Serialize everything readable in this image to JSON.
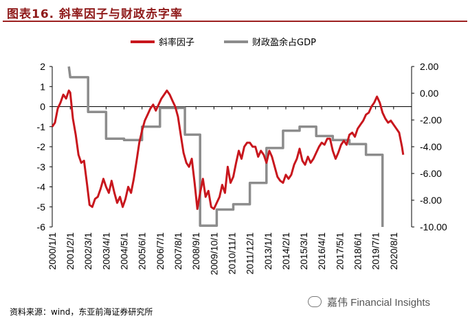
{
  "header": {
    "title": "图表16.  斜率因子与财政赤字率"
  },
  "source": "资料来源：wind，东亚前海证券研究所",
  "watermark": "嘉伟 Financial Insights",
  "watermark_icon": "wechat-icon",
  "colors": {
    "slope": "#c8161d",
    "fiscal": "#8c8c8c",
    "title": "#8f1a1a"
  },
  "chart_data": {
    "type": "line",
    "title": "",
    "legend_position": "top",
    "grid": false,
    "y_left": {
      "lim": [
        -6,
        2
      ],
      "ticks": [
        "2",
        "1",
        "0",
        "-1",
        "-2",
        "-3",
        "-4",
        "-5",
        "-6"
      ]
    },
    "y_right": {
      "lim": [
        -10,
        2
      ],
      "ticks": [
        "2.00",
        "0.00",
        "-2.00",
        "-4.00",
        "-6.00",
        "-8.00",
        "-10.00"
      ]
    },
    "x_ticks": [
      "2000/1/1",
      "2001/2/1",
      "2002/3/1",
      "2003/4/1",
      "2004/5/1",
      "2005/6/1",
      "2006/7/1",
      "2007/8/1",
      "2008/9/1",
      "2009/10/1",
      "2010/11/1",
      "2011/12/1",
      "2013/1/1",
      "2014/2/1",
      "2015/3/1",
      "2016/4/1",
      "2017/5/1",
      "2018/6/1",
      "2019/7/1",
      "2020/8/1"
    ],
    "x_range": [
      "2000/1/1",
      "2021/9/1"
    ],
    "series": [
      {
        "name": "斜率因子",
        "axis": "left",
        "points": [
          [
            "2000/1/1",
            -1.0
          ],
          [
            "2000/3/1",
            -0.8
          ],
          [
            "2000/5/1",
            -0.1
          ],
          [
            "2000/7/1",
            0.2
          ],
          [
            "2000/9/1",
            0.6
          ],
          [
            "2000/11/1",
            0.4
          ],
          [
            "2001/1/1",
            0.8
          ],
          [
            "2001/2/1",
            0.7
          ],
          [
            "2001/4/1",
            -0.6
          ],
          [
            "2001/6/1",
            -1.4
          ],
          [
            "2001/8/1",
            -2.4
          ],
          [
            "2001/10/1",
            -2.8
          ],
          [
            "2001/12/1",
            -2.7
          ],
          [
            "2002/2/1",
            -3.8
          ],
          [
            "2002/4/1",
            -4.9
          ],
          [
            "2002/6/1",
            -5.0
          ],
          [
            "2002/8/1",
            -4.6
          ],
          [
            "2002/10/1",
            -4.5
          ],
          [
            "2002/12/1",
            -4.1
          ],
          [
            "2003/2/1",
            -3.6
          ],
          [
            "2003/4/1",
            -4.0
          ],
          [
            "2003/6/1",
            -4.3
          ],
          [
            "2003/8/1",
            -3.7
          ],
          [
            "2003/10/1",
            -4.3
          ],
          [
            "2003/12/1",
            -4.8
          ],
          [
            "2004/2/1",
            -4.5
          ],
          [
            "2004/4/1",
            -5.0
          ],
          [
            "2004/6/1",
            -4.6
          ],
          [
            "2004/8/1",
            -4.0
          ],
          [
            "2004/10/1",
            -4.3
          ],
          [
            "2004/12/1",
            -3.6
          ],
          [
            "2005/2/1",
            -2.7
          ],
          [
            "2005/4/1",
            -1.8
          ],
          [
            "2005/6/1",
            -1.2
          ],
          [
            "2005/8/1",
            -0.7
          ],
          [
            "2005/10/1",
            -0.4
          ],
          [
            "2005/12/1",
            -0.1
          ],
          [
            "2006/2/1",
            0.1
          ],
          [
            "2006/4/1",
            -0.2
          ],
          [
            "2006/6/1",
            0.1
          ],
          [
            "2006/8/1",
            0.4
          ],
          [
            "2006/10/1",
            0.6
          ],
          [
            "2006/12/1",
            0.8
          ],
          [
            "2007/2/1",
            0.6
          ],
          [
            "2007/4/1",
            0.3
          ],
          [
            "2007/6/1",
            0.0
          ],
          [
            "2007/8/1",
            -0.5
          ],
          [
            "2007/10/1",
            -1.4
          ],
          [
            "2007/12/1",
            -2.3
          ],
          [
            "2008/2/1",
            -2.8
          ],
          [
            "2008/4/1",
            -3.0
          ],
          [
            "2008/6/1",
            -2.6
          ],
          [
            "2008/8/1",
            -3.8
          ],
          [
            "2008/10/1",
            -5.1
          ],
          [
            "2008/12/1",
            -4.3
          ],
          [
            "2009/2/1",
            -3.6
          ],
          [
            "2009/4/1",
            -4.5
          ],
          [
            "2009/6/1",
            -4.2
          ],
          [
            "2009/8/1",
            -5.0
          ],
          [
            "2009/10/1",
            -5.1
          ],
          [
            "2009/12/1",
            -4.8
          ],
          [
            "2010/2/1",
            -4.5
          ],
          [
            "2010/4/1",
            -3.9
          ],
          [
            "2010/6/1",
            -4.3
          ],
          [
            "2010/8/1",
            -3.0
          ],
          [
            "2010/10/1",
            -3.8
          ],
          [
            "2010/12/1",
            -3.5
          ],
          [
            "2011/2/1",
            -2.8
          ],
          [
            "2011/4/1",
            -2.2
          ],
          [
            "2011/6/1",
            -2.6
          ],
          [
            "2011/8/1",
            -2.0
          ],
          [
            "2011/10/1",
            -1.8
          ],
          [
            "2011/12/1",
            -1.8
          ],
          [
            "2012/2/1",
            -2.0
          ],
          [
            "2012/4/1",
            -2.0
          ],
          [
            "2012/6/1",
            -2.5
          ],
          [
            "2012/8/1",
            -2.2
          ],
          [
            "2012/10/1",
            -2.4
          ],
          [
            "2012/12/1",
            -2.8
          ],
          [
            "2013/2/1",
            -2.2
          ],
          [
            "2013/4/1",
            -2.5
          ],
          [
            "2013/6/1",
            -3.0
          ],
          [
            "2013/8/1",
            -3.5
          ],
          [
            "2013/10/1",
            -3.7
          ],
          [
            "2013/12/1",
            -3.8
          ],
          [
            "2014/2/1",
            -3.4
          ],
          [
            "2014/4/1",
            -3.6
          ],
          [
            "2014/6/1",
            -3.4
          ],
          [
            "2014/8/1",
            -2.9
          ],
          [
            "2014/10/1",
            -2.6
          ],
          [
            "2014/12/1",
            -2.1
          ],
          [
            "2015/2/1",
            -2.7
          ],
          [
            "2015/4/1",
            -2.9
          ],
          [
            "2015/6/1",
            -2.5
          ],
          [
            "2015/8/1",
            -2.8
          ],
          [
            "2015/10/1",
            -2.6
          ],
          [
            "2015/12/1",
            -2.3
          ],
          [
            "2016/2/1",
            -2.0
          ],
          [
            "2016/4/1",
            -1.8
          ],
          [
            "2016/6/1",
            -1.9
          ],
          [
            "2016/8/1",
            -1.6
          ],
          [
            "2016/10/1",
            -1.6
          ],
          [
            "2016/12/1",
            -2.2
          ],
          [
            "2017/2/1",
            -2.6
          ],
          [
            "2017/4/1",
            -2.3
          ],
          [
            "2017/6/1",
            -1.9
          ],
          [
            "2017/8/1",
            -1.7
          ],
          [
            "2017/10/1",
            -1.9
          ],
          [
            "2017/12/1",
            -1.4
          ],
          [
            "2018/2/1",
            -1.3
          ],
          [
            "2018/4/1",
            -1.5
          ],
          [
            "2018/6/1",
            -1.1
          ],
          [
            "2018/8/1",
            -0.9
          ],
          [
            "2018/10/1",
            -0.7
          ],
          [
            "2018/12/1",
            -0.4
          ],
          [
            "2019/2/1",
            -0.3
          ],
          [
            "2019/4/1",
            0.0
          ],
          [
            "2019/6/1",
            0.2
          ],
          [
            "2019/8/1",
            0.5
          ],
          [
            "2019/10/1",
            0.2
          ],
          [
            "2019/12/1",
            -0.3
          ],
          [
            "2020/2/1",
            -0.6
          ],
          [
            "2020/4/1",
            -0.8
          ],
          [
            "2020/6/1",
            -0.7
          ],
          [
            "2020/8/1",
            -0.9
          ],
          [
            "2020/10/1",
            -1.1
          ],
          [
            "2020/12/1",
            -1.3
          ],
          [
            "2021/2/1",
            -2.0
          ],
          [
            "2021/3/1",
            -2.4
          ]
        ]
      },
      {
        "name": "财政盈余占GDP",
        "axis": "right",
        "points": [
          [
            "2001/1/1",
            2.0
          ],
          [
            "2001/2/1",
            1.2
          ],
          [
            "2002/3/1",
            1.2
          ],
          [
            "2002/3/1",
            -1.4
          ],
          [
            "2003/4/1",
            -1.4
          ],
          [
            "2003/4/1",
            -3.4
          ],
          [
            "2004/5/1",
            -3.4
          ],
          [
            "2004/5/1",
            -3.5
          ],
          [
            "2005/6/1",
            -3.5
          ],
          [
            "2005/6/1",
            -2.5
          ],
          [
            "2006/7/1",
            -2.5
          ],
          [
            "2006/7/1",
            -1.1
          ],
          [
            "2008/1/1",
            -1.1
          ],
          [
            "2008/1/1",
            -3.1
          ],
          [
            "2008/12/1",
            -3.1
          ],
          [
            "2008/12/1",
            -9.9
          ],
          [
            "2009/12/1",
            -9.9
          ],
          [
            "2009/12/1",
            -8.7
          ],
          [
            "2010/12/1",
            -8.7
          ],
          [
            "2010/12/1",
            -8.3
          ],
          [
            "2011/12/1",
            -8.3
          ],
          [
            "2011/12/1",
            -6.7
          ],
          [
            "2012/12/1",
            -6.7
          ],
          [
            "2012/12/1",
            -4.1
          ],
          [
            "2013/12/1",
            -4.1
          ],
          [
            "2013/12/1",
            -2.8
          ],
          [
            "2014/12/1",
            -2.8
          ],
          [
            "2014/12/1",
            -2.5
          ],
          [
            "2015/12/1",
            -2.5
          ],
          [
            "2015/12/1",
            -3.2
          ],
          [
            "2016/12/1",
            -3.2
          ],
          [
            "2016/12/1",
            -3.5
          ],
          [
            "2017/12/1",
            -3.5
          ],
          [
            "2017/12/1",
            -3.8
          ],
          [
            "2018/12/1",
            -3.8
          ],
          [
            "2018/12/1",
            -4.6
          ],
          [
            "2019/12/1",
            -4.6
          ],
          [
            "2019/12/1",
            -10.0
          ]
        ]
      }
    ]
  }
}
